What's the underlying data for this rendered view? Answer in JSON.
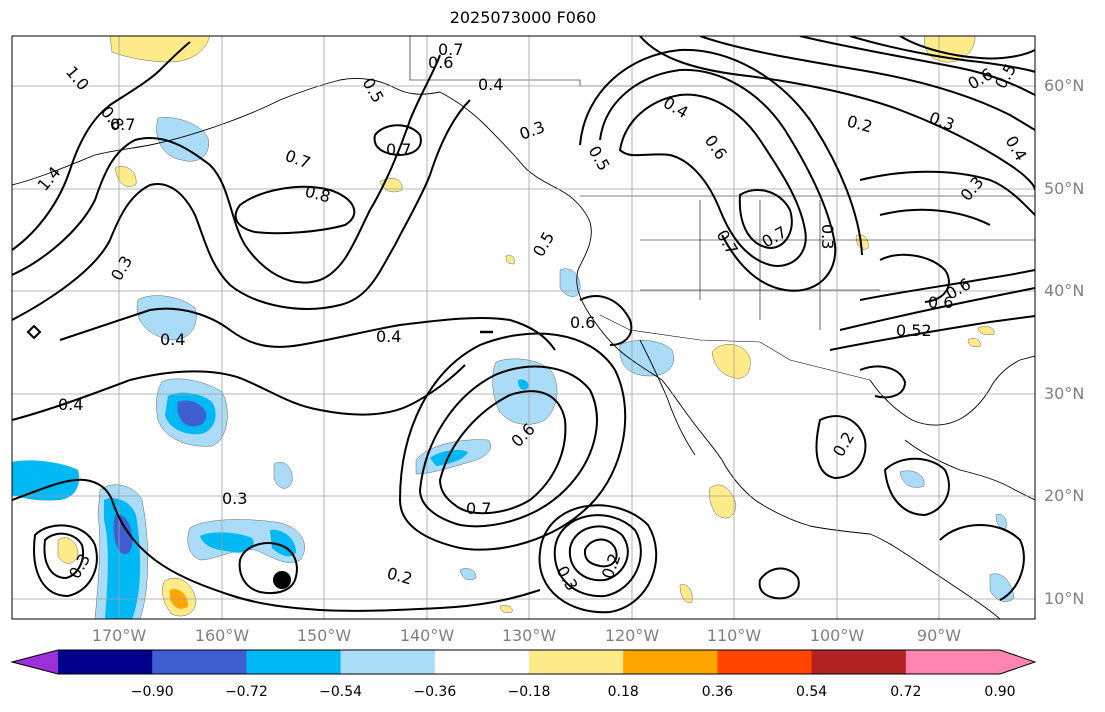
{
  "title": "2025073000 F060",
  "colors": {
    "contour": "#000000",
    "grid": "#a0a0a0",
    "coast": "#000000",
    "neg_light": "#aadcf8",
    "neg_mid": "#00b8f4",
    "neg_strong": "#3f5fd1",
    "neg_stronger": "#00008b",
    "pos_light": "#ffeb8a",
    "pos_mid": "#ffa500",
    "pos_strong": "#ff4500"
  },
  "map": {
    "lat_labels": [
      "60°N",
      "50°N",
      "40°N",
      "30°N",
      "20°N",
      "10°N"
    ],
    "lon_labels": [
      "170°W",
      "160°W",
      "150°W",
      "140°W",
      "130°W",
      "120°W",
      "110°W",
      "100°W",
      "90°W"
    ],
    "contour_labels": [
      {
        "text": "0.7"
      },
      {
        "text": "0.6"
      },
      {
        "text": "0.4"
      },
      {
        "text": "0.5"
      },
      {
        "text": "1.0"
      },
      {
        "text": "0.8"
      },
      {
        "text": "0.7"
      },
      {
        "text": "1.4"
      },
      {
        "text": "0.7"
      },
      {
        "text": "0.8"
      },
      {
        "text": "0.7"
      },
      {
        "text": "0.3"
      },
      {
        "text": "0.5"
      },
      {
        "text": "0.4"
      },
      {
        "text": "0.6"
      },
      {
        "text": "0.2"
      },
      {
        "text": "0.3"
      },
      {
        "text": "0.6"
      },
      {
        "text": "0.5"
      },
      {
        "text": "0.4"
      },
      {
        "text": "0.3"
      },
      {
        "text": "0.5"
      },
      {
        "text": "0.6"
      },
      {
        "text": "0.4"
      },
      {
        "text": "0.4"
      },
      {
        "text": "0.4"
      },
      {
        "text": "0.3"
      },
      {
        "text": "0.6"
      },
      {
        "text": "0.7"
      },
      {
        "text": "0.7"
      },
      {
        "text": "0.3"
      },
      {
        "text": "0.2"
      },
      {
        "text": "0.3"
      },
      {
        "text": "0.2"
      },
      {
        "text": "0.3"
      },
      {
        "text": "0.6"
      },
      {
        "text": "0.7"
      },
      {
        "text": "0.6"
      },
      {
        "text": "0.52"
      },
      {
        "text": "0.2"
      },
      {
        "text": "0.3"
      }
    ]
  },
  "colorbar": {
    "colors": [
      "#9b30d9",
      "#00008b",
      "#3f5fd1",
      "#00b8f4",
      "#aadcf8",
      "#ffffff",
      "#ffeb8a",
      "#ffa500",
      "#ff4500",
      "#b22222",
      "#ff85b0",
      "#ff85b0"
    ],
    "tick_labels": [
      "−0.90",
      "−0.72",
      "−0.54",
      "−0.36",
      "−0.18",
      "0.18",
      "0.36",
      "0.54",
      "0.72",
      "0.90"
    ]
  }
}
